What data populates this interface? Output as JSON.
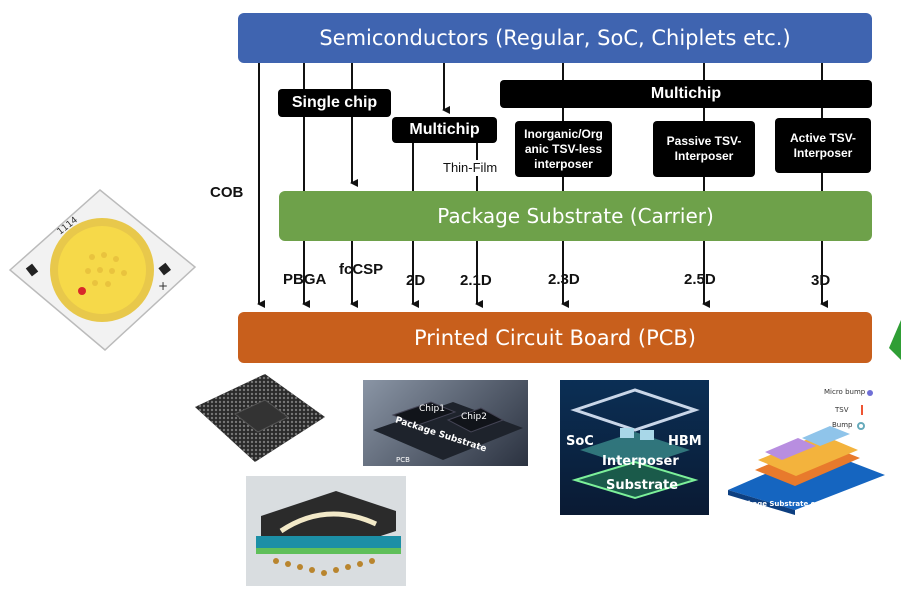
{
  "bars": {
    "top": "Semiconductors (Regular, SoC, Chiplets etc.)",
    "middle": "Package Substrate (Carrier)",
    "bottom": "Printed Circuit Board (PCB)"
  },
  "tags": {
    "single_chip": "Single chip",
    "multichip_left": "Multichip",
    "multichip_right": "Multichip",
    "inorganic": "Inorganic/Org anic TSV-less interposer",
    "passive": "Passive TSV-Interposer",
    "active": "Active TSV-Interposer"
  },
  "labels": {
    "cob": "COB",
    "thin_film": "Thin-Film",
    "pbga": "PBGA",
    "fccsp": "fcCSP",
    "d2": "2D",
    "d21": "2.1D",
    "d23": "2.3D",
    "d25": "2.5D",
    "d3": "3D"
  },
  "photos": {
    "led_marking": "1114",
    "chip1": "Chip1",
    "chip2": "Chip2",
    "package_substrate": "Package Substrate",
    "pcb": "PCB",
    "soc": "SoC",
    "hbm": "HBM",
    "interposer": "Interposer",
    "substrate": "Substrate",
    "micro_bump": "Micro bump",
    "tsv": "TSV",
    "bump": "Bump",
    "substrate_or_pcb": "Package Substrate or PCB"
  },
  "colors": {
    "semiconductor_bar": "#3f64b0",
    "substrate_bar": "#6ea14a",
    "pcb_bar": "#c85f1c"
  }
}
